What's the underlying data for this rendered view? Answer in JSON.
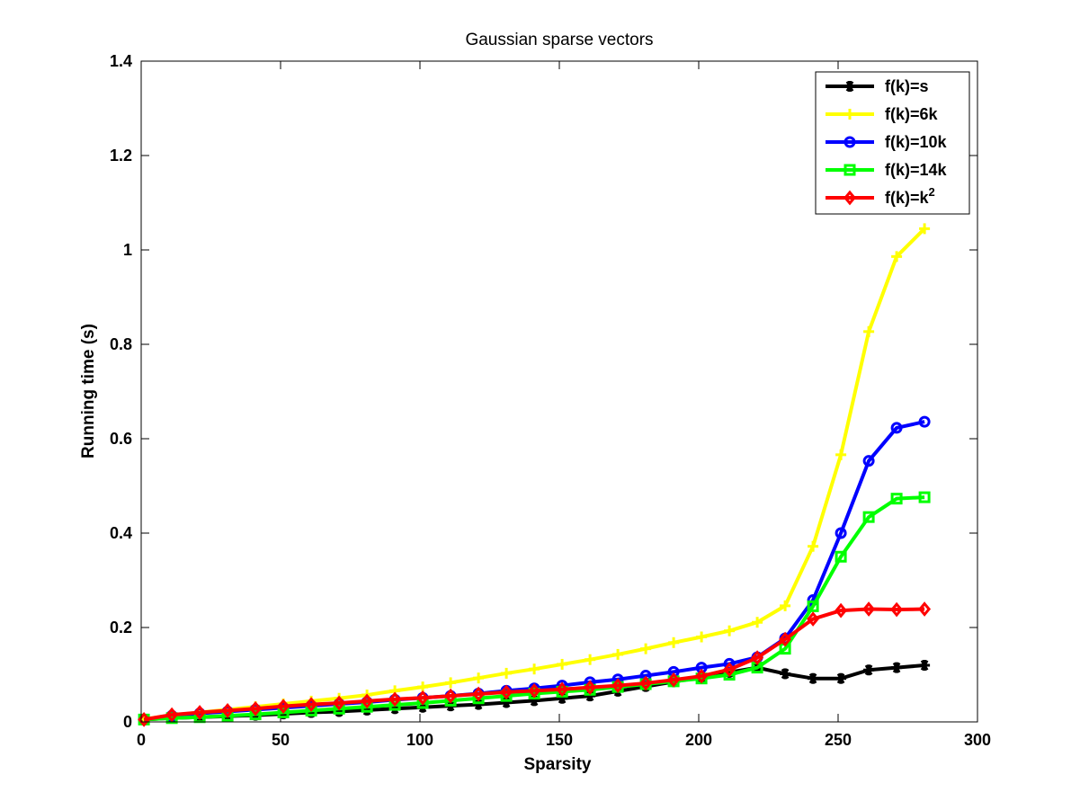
{
  "chart_data": {
    "type": "line",
    "title": "Gaussian sparse vectors",
    "xlabel": "Sparsity",
    "ylabel": "Running time (s)",
    "xlim": [
      0,
      300
    ],
    "ylim": [
      0,
      1.4
    ],
    "xticks": [
      "0",
      "50",
      "100",
      "150",
      "200",
      "250",
      "300"
    ],
    "yticks": [
      "0",
      "0.2",
      "0.4",
      "0.6",
      "0.8",
      "1",
      "1.2",
      "1.4"
    ],
    "grid": false,
    "legend_position": "top-right",
    "x": [
      1,
      11,
      21,
      31,
      41,
      51,
      61,
      71,
      81,
      91,
      101,
      111,
      121,
      131,
      141,
      151,
      161,
      171,
      181,
      191,
      201,
      211,
      221,
      231,
      241,
      251,
      261,
      271,
      281
    ],
    "series": [
      {
        "name": "f(k)=s",
        "legend_base": "f(k)=s",
        "legend_sup": "",
        "color": "#000000",
        "marker": "asterisk",
        "values": [
          0.005,
          0.008,
          0.01,
          0.012,
          0.014,
          0.017,
          0.02,
          0.022,
          0.025,
          0.028,
          0.031,
          0.034,
          0.037,
          0.041,
          0.045,
          0.05,
          0.055,
          0.065,
          0.075,
          0.085,
          0.095,
          0.105,
          0.115,
          0.102,
          0.092,
          0.092,
          0.11,
          0.115,
          0.12
        ]
      },
      {
        "name": "f(k)=6k",
        "legend_base": "f(k)=6k",
        "legend_sup": "",
        "color": "#ffff00",
        "marker": "plus",
        "values": [
          0.006,
          0.014,
          0.02,
          0.026,
          0.032,
          0.038,
          0.044,
          0.05,
          0.057,
          0.066,
          0.074,
          0.083,
          0.093,
          0.103,
          0.112,
          0.122,
          0.132,
          0.143,
          0.155,
          0.168,
          0.18,
          0.193,
          0.211,
          0.246,
          0.372,
          0.566,
          0.827,
          0.986,
          1.045
        ]
      },
      {
        "name": "f(k)=10k",
        "legend_base": "f(k)=10k",
        "legend_sup": "",
        "color": "#0000ff",
        "marker": "circle",
        "values": [
          0.005,
          0.013,
          0.018,
          0.022,
          0.026,
          0.03,
          0.034,
          0.038,
          0.042,
          0.047,
          0.051,
          0.055,
          0.06,
          0.066,
          0.071,
          0.077,
          0.084,
          0.09,
          0.098,
          0.106,
          0.115,
          0.123,
          0.137,
          0.177,
          0.258,
          0.4,
          0.553,
          0.623,
          0.636
        ]
      },
      {
        "name": "f(k)=14k",
        "legend_base": "f(k)=14k",
        "legend_sup": "",
        "color": "#00ff00",
        "marker": "square",
        "values": [
          0.005,
          0.008,
          0.01,
          0.013,
          0.016,
          0.02,
          0.024,
          0.028,
          0.032,
          0.036,
          0.04,
          0.045,
          0.05,
          0.055,
          0.06,
          0.064,
          0.068,
          0.074,
          0.08,
          0.086,
          0.092,
          0.1,
          0.115,
          0.155,
          0.245,
          0.35,
          0.434,
          0.473,
          0.476
        ]
      },
      {
        "name": "f(k)=k^2",
        "legend_base": "f(k)=k",
        "legend_sup": "2",
        "color": "#ff0000",
        "marker": "diamond",
        "values": [
          0.005,
          0.015,
          0.02,
          0.024,
          0.028,
          0.033,
          0.037,
          0.04,
          0.044,
          0.048,
          0.051,
          0.055,
          0.059,
          0.063,
          0.066,
          0.069,
          0.073,
          0.077,
          0.082,
          0.089,
          0.097,
          0.111,
          0.136,
          0.175,
          0.218,
          0.236,
          0.239,
          0.238,
          0.239
        ]
      }
    ]
  }
}
